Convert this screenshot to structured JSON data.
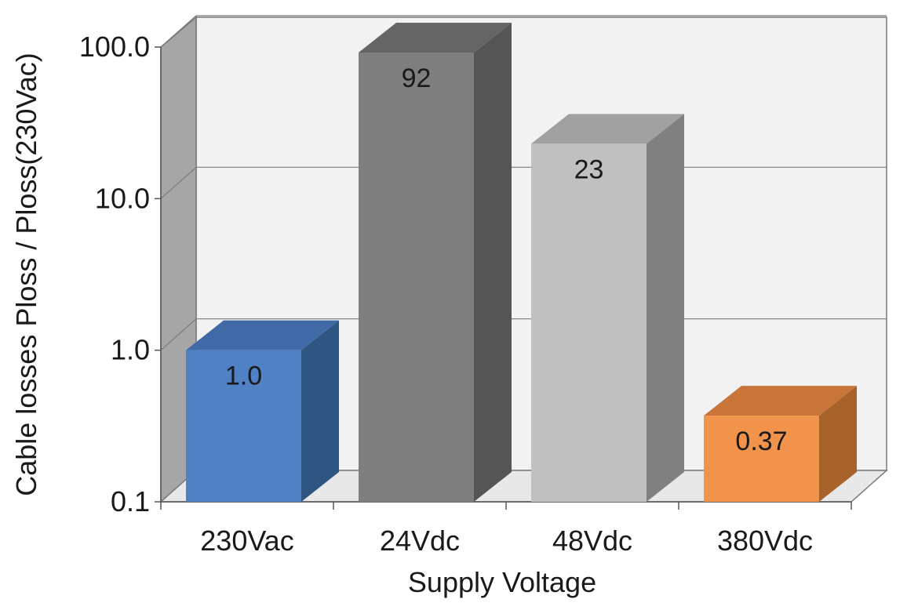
{
  "chart_data": {
    "type": "bar",
    "categories": [
      "230Vac",
      "24Vdc",
      "48Vdc",
      "380Vdc"
    ],
    "values": [
      1.0,
      92,
      23,
      0.37
    ],
    "data_labels": [
      "1.0",
      "92",
      "23",
      "0.37"
    ],
    "xlabel": "Supply Voltage",
    "ylabel": "Cable losses Ploss / Ploss(230Vac)",
    "y_scale": "log",
    "ylim": [
      0.1,
      100
    ],
    "y_ticks": [
      0.1,
      1,
      10,
      100
    ],
    "y_tick_labels": [
      "0.1",
      "1.0",
      "10.0",
      "100.0"
    ],
    "grid": true,
    "style": "3d",
    "colors": [
      {
        "front": "#4f81c4",
        "side": "#2f5583",
        "top": "#3f6aa5"
      },
      {
        "front": "#7f7f7f",
        "side": "#555555",
        "top": "#656565"
      },
      {
        "front": "#c0c0c0",
        "side": "#808080",
        "top": "#a0a0a0"
      },
      {
        "front": "#f1934a",
        "side": "#a8632b",
        "top": "#c97438"
      }
    ]
  }
}
